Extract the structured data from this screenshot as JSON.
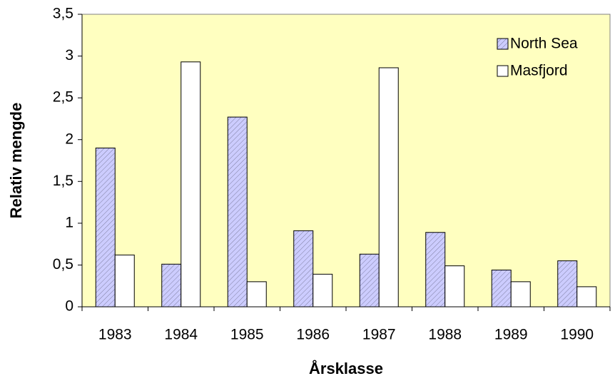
{
  "chart_data": {
    "type": "bar",
    "x_label": "Årsklasse",
    "y_label": "Relativ mengde",
    "categories": [
      "1983",
      "1984",
      "1985",
      "1986",
      "1987",
      "1988",
      "1989",
      "1990"
    ],
    "series": [
      {
        "name": "North Sea",
        "color": "#ccccff",
        "hatch": true,
        "values": [
          1.9,
          0.51,
          2.27,
          0.91,
          0.63,
          0.89,
          0.44,
          0.55
        ]
      },
      {
        "name": "Masfjord",
        "color": "#ffffff",
        "hatch": false,
        "values": [
          0.62,
          2.93,
          0.3,
          0.39,
          2.86,
          0.49,
          0.3,
          0.24
        ]
      }
    ],
    "ylim": [
      0,
      3.5
    ],
    "yticks": [
      0,
      {
        "value": 0.5,
        "label": "0,5"
      },
      1,
      {
        "value": 1.5,
        "label": "1,5"
      },
      2,
      {
        "value": 2.5,
        "label": "2,5"
      },
      3,
      {
        "value": 3.5,
        "label": "3,5"
      }
    ],
    "plot_background": "#ffffc0",
    "legend": "upper-right"
  }
}
